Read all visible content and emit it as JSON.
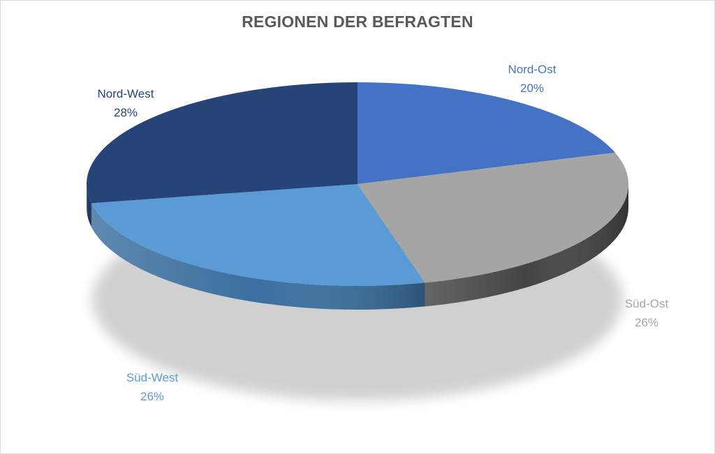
{
  "chart_data": {
    "type": "pie",
    "title": "REGIONEN DER BEFRAGTEN",
    "slices": [
      {
        "label": "Nord-Ost",
        "value": 20,
        "value_text": "20%",
        "color": "#4472c4",
        "side_color": "#34599b",
        "label_color": "#4472c4"
      },
      {
        "label": "Süd-Ost",
        "value": 26,
        "value_text": "26%",
        "color": "#a5a5a5",
        "side_color": "#444444",
        "label_color": "#a5a5a5"
      },
      {
        "label": "Süd-West",
        "value": 26,
        "value_text": "26%",
        "color": "#5b9bd5",
        "side_color": "#3a6f9f",
        "label_color": "#5b9bd5"
      },
      {
        "label": "Nord-West",
        "value": 28,
        "value_text": "28%",
        "color": "#264478",
        "side_color": "#1b3158",
        "label_color": "#264478"
      }
    ],
    "style": "3d",
    "legend": "none",
    "data_labels": "outside"
  }
}
